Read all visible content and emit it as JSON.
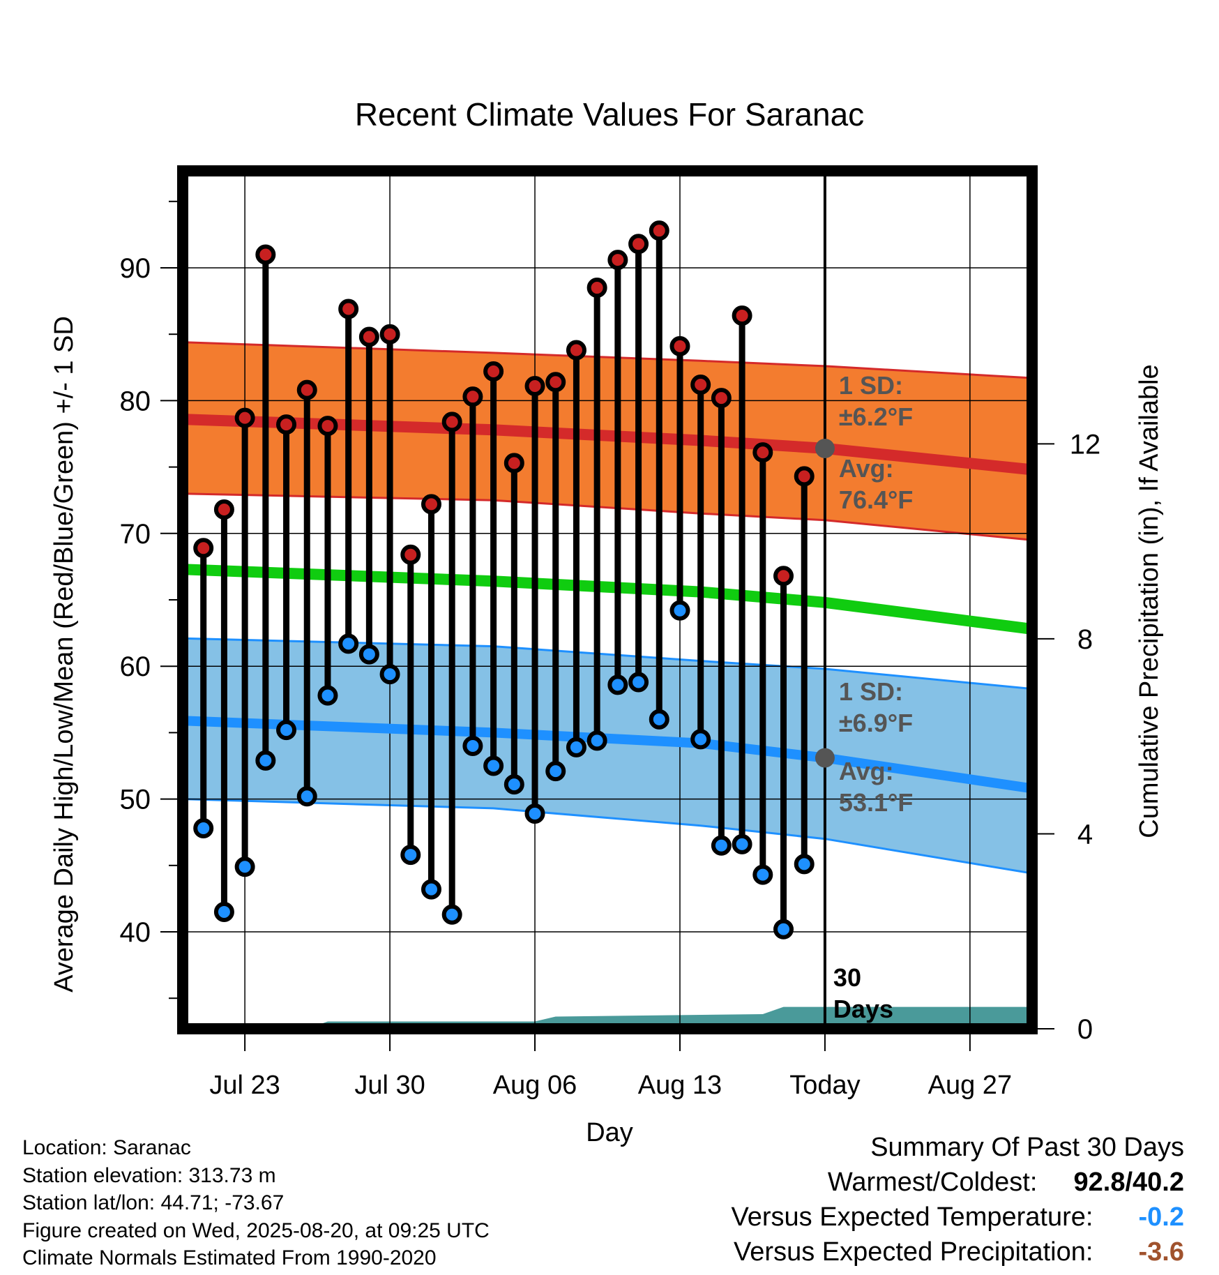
{
  "chart_data": {
    "type": "line",
    "title": "Recent Climate Values For Saranac",
    "xlabel": "Day",
    "ylabel": "Average Daily High/Low/Mean (Red/Blue/Green) +/- 1 SD",
    "y2label": "Cumulative Precipitation (in), If Available",
    "x_start": "Jul 20",
    "x_end": "Aug 30",
    "x_ticks": [
      "Jul 23",
      "Jul 30",
      "Aug 06",
      "Aug 13",
      "Today",
      "Aug 27"
    ],
    "ylim": [
      32.7,
      97.3
    ],
    "y_ticks": [
      40,
      50,
      60,
      70,
      80,
      90
    ],
    "y2lim": [
      0,
      17.6
    ],
    "y2_ticks": [
      0,
      4,
      8,
      12
    ],
    "grid": true,
    "today_marker": {
      "date": "Aug 20",
      "label": "30 Days"
    },
    "normals": {
      "high_avg": {
        "label": "Avg:",
        "value_text": "76.4°F",
        "color": "#d42a2a",
        "points": [
          [
            "Jul 20",
            78.6
          ],
          [
            "Aug 04",
            77.8
          ],
          [
            "Aug 14",
            77.0
          ],
          [
            "Aug 20",
            76.4
          ],
          [
            "Aug 30",
            74.8
          ]
        ]
      },
      "high_sd": {
        "label": "1 SD:",
        "value_text": "±6.2°F",
        "color": "#f37c2f",
        "upper": [
          [
            "Jul 20",
            84.4
          ],
          [
            "Aug 04",
            83.6
          ],
          [
            "Aug 14",
            83.0
          ],
          [
            "Aug 20",
            82.6
          ],
          [
            "Aug 30",
            81.7
          ]
        ],
        "lower": [
          [
            "Jul 20",
            73.0
          ],
          [
            "Aug 04",
            72.5
          ],
          [
            "Aug 14",
            71.5
          ],
          [
            "Aug 20",
            71.0
          ],
          [
            "Aug 30",
            69.5
          ]
        ]
      },
      "mean": {
        "color": "#10cc10",
        "points": [
          [
            "Jul 20",
            67.3
          ],
          [
            "Aug 04",
            66.4
          ],
          [
            "Aug 14",
            65.6
          ],
          [
            "Aug 20",
            64.8
          ],
          [
            "Aug 30",
            62.8
          ]
        ]
      },
      "low_avg": {
        "label": "Avg:",
        "value_text": "53.1°F",
        "color": "#1e90ff",
        "points": [
          [
            "Jul 20",
            55.9
          ],
          [
            "Aug 04",
            55.0
          ],
          [
            "Aug 14",
            54.2
          ],
          [
            "Aug 20",
            53.1
          ],
          [
            "Aug 30",
            50.8
          ]
        ]
      },
      "low_sd": {
        "label": "1 SD:",
        "value_text": "±6.9°F",
        "color": "#85c1e6",
        "upper": [
          [
            "Jul 20",
            62.1
          ],
          [
            "Aug 04",
            61.5
          ],
          [
            "Aug 14",
            60.4
          ],
          [
            "Aug 20",
            59.8
          ],
          [
            "Aug 30",
            58.3
          ]
        ],
        "lower": [
          [
            "Jul 20",
            50.0
          ],
          [
            "Aug 04",
            49.3
          ],
          [
            "Aug 14",
            48.0
          ],
          [
            "Aug 20",
            47.0
          ],
          [
            "Aug 30",
            44.4
          ]
        ]
      }
    },
    "series": [
      {
        "name": "High",
        "color": "#c82020",
        "x": [
          "Jul 21",
          "Jul 22",
          "Jul 23",
          "Jul 24",
          "Jul 25",
          "Jul 26",
          "Jul 27",
          "Jul 28",
          "Jul 29",
          "Jul 30",
          "Jul 31",
          "Aug 01",
          "Aug 02",
          "Aug 03",
          "Aug 04",
          "Aug 05",
          "Aug 06",
          "Aug 07",
          "Aug 08",
          "Aug 09",
          "Aug 10",
          "Aug 11",
          "Aug 12",
          "Aug 13",
          "Aug 14",
          "Aug 15",
          "Aug 16",
          "Aug 17",
          "Aug 18",
          "Aug 19"
        ],
        "values": [
          68.9,
          71.8,
          78.7,
          91.0,
          78.2,
          80.8,
          78.1,
          86.9,
          84.8,
          85.0,
          68.4,
          72.2,
          78.4,
          80.3,
          82.2,
          75.3,
          81.1,
          81.4,
          83.8,
          88.5,
          90.6,
          91.8,
          92.8,
          84.1,
          81.2,
          80.2,
          86.4,
          76.1,
          66.8,
          74.3
        ]
      },
      {
        "name": "Low",
        "color": "#1e90ff",
        "x": [
          "Jul 21",
          "Jul 22",
          "Jul 23",
          "Jul 24",
          "Jul 25",
          "Jul 26",
          "Jul 27",
          "Jul 28",
          "Jul 29",
          "Jul 30",
          "Jul 31",
          "Aug 01",
          "Aug 02",
          "Aug 03",
          "Aug 04",
          "Aug 05",
          "Aug 06",
          "Aug 07",
          "Aug 08",
          "Aug 09",
          "Aug 10",
          "Aug 11",
          "Aug 12",
          "Aug 13",
          "Aug 14",
          "Aug 15",
          "Aug 16",
          "Aug 17",
          "Aug 18",
          "Aug 19"
        ],
        "values": [
          47.8,
          41.5,
          44.9,
          52.9,
          55.2,
          50.2,
          57.8,
          61.7,
          60.9,
          59.4,
          45.8,
          43.2,
          41.3,
          54.0,
          52.5,
          51.1,
          48.9,
          52.1,
          53.9,
          54.4,
          58.6,
          58.8,
          56.0,
          64.2,
          54.5,
          46.5,
          46.6,
          44.3,
          40.2,
          45.1
        ]
      },
      {
        "name": "Cumulative Precipitation",
        "color": "#4a9a9a",
        "x": [
          "Jul 20",
          "Jul 26",
          "Jul 27",
          "Aug 06",
          "Aug 07",
          "Aug 13",
          "Aug 17",
          "Aug 18",
          "Aug 30"
        ],
        "values": [
          0,
          0,
          0.15,
          0.15,
          0.25,
          0.28,
          0.3,
          0.45,
          0.45
        ]
      }
    ]
  },
  "footer": {
    "location": "Location: Saranac",
    "elevation": "Station elevation: 313.73 m",
    "latlon": "Station lat/lon: 44.71; -73.67",
    "created": "Figure created on Wed, 2025-08-20, at 09:25 UTC",
    "normals": "Climate Normals Estimated From 1990-2020"
  },
  "summary": {
    "heading": "Summary Of Past 30 Days",
    "warmest_label": "Warmest/Coldest:",
    "warmest_value": "92.8/40.2",
    "temp_label": "Versus Expected Temperature:",
    "temp_value": "-0.2",
    "temp_color": "#1e90ff",
    "precip_label": "Versus Expected Precipitation:",
    "precip_value": "-3.6",
    "precip_color": "#a0522d"
  }
}
